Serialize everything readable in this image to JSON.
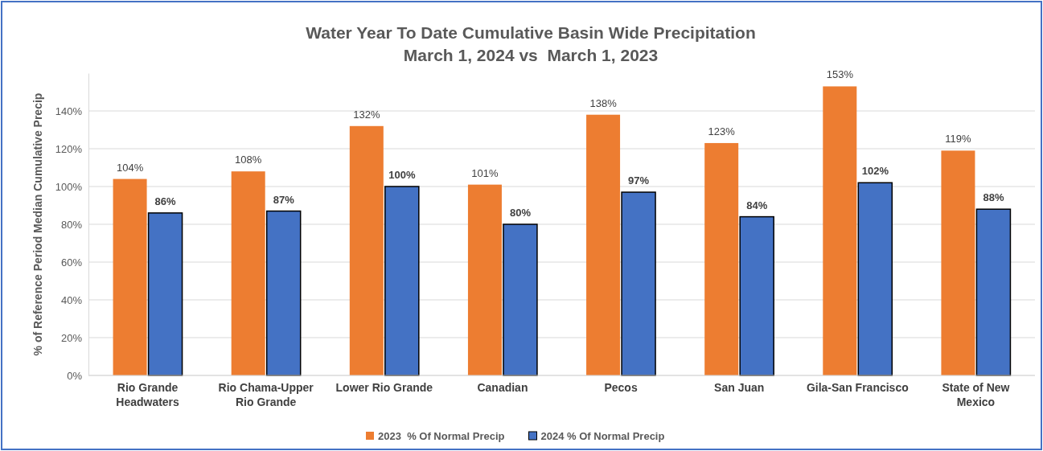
{
  "chart_data": {
    "type": "bar",
    "title": "Water Year To Date Cumulative Basin Wide Precipitation",
    "subtitle": "March 1, 2024 vs  March 1, 2023",
    "ylabel": "% of Reference Period Median Cumulative Precip",
    "categories": [
      "Rio Grande Headwaters",
      "Rio Chama-Upper Rio Grande",
      "Lower Rio Grande",
      "Canadian",
      "Pecos",
      "San Juan",
      "Gila-San Francisco",
      "State of New Mexico"
    ],
    "series": [
      {
        "name": "2023  % Of Normal Precip",
        "color": "#ed7d31",
        "values": [
          104,
          108,
          132,
          101,
          138,
          123,
          153,
          119
        ],
        "value_labels": [
          "104%",
          "108%",
          "132%",
          "101%",
          "138%",
          "123%",
          "153%",
          "119%"
        ]
      },
      {
        "name": "2024 % Of Normal Precip",
        "color": "#4472c4",
        "values": [
          86,
          87,
          100,
          80,
          97,
          84,
          102,
          88
        ],
        "value_labels": [
          "86%",
          "87%",
          "100%",
          "80%",
          "97%",
          "84%",
          "102%",
          "88%"
        ]
      }
    ],
    "ylim": [
      0,
      160
    ],
    "yticks": [
      {
        "value": 0,
        "label": "0%"
      },
      {
        "value": 20,
        "label": "20%"
      },
      {
        "value": 40,
        "label": "40%"
      },
      {
        "value": 60,
        "label": "60%"
      },
      {
        "value": 80,
        "label": "80%"
      },
      {
        "value": 100,
        "label": "100%"
      },
      {
        "value": 120,
        "label": "120%"
      },
      {
        "value": 140,
        "label": "140%"
      }
    ],
    "grid": "y",
    "legend": "bottom"
  }
}
